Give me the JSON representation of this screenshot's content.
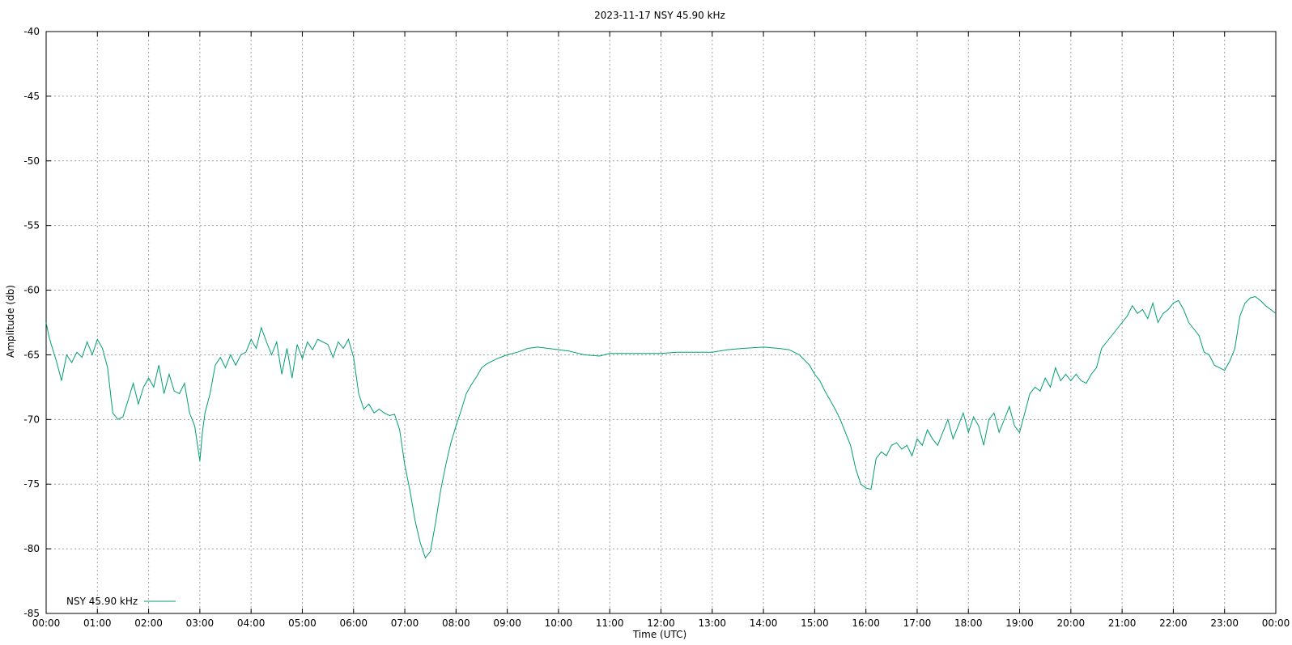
{
  "chart_data": {
    "type": "line",
    "title": "2023-11-17 NSY 45.90 kHz",
    "xlabel": "Time (UTC)",
    "ylabel": "Amplitude (db)",
    "xlim": [
      0,
      24
    ],
    "ylim": [
      -85,
      -40
    ],
    "x_tick_labels": [
      "00:00",
      "01:00",
      "02:00",
      "03:00",
      "04:00",
      "05:00",
      "06:00",
      "07:00",
      "08:00",
      "09:00",
      "10:00",
      "11:00",
      "12:00",
      "13:00",
      "14:00",
      "15:00",
      "16:00",
      "17:00",
      "18:00",
      "19:00",
      "20:00",
      "21:00",
      "22:00",
      "23:00",
      "00:00"
    ],
    "y_ticks": [
      -40,
      -45,
      -50,
      -55,
      -60,
      -65,
      -70,
      -75,
      -80,
      -85
    ],
    "grid": true,
    "legend_position": "bottom-left",
    "series": [
      {
        "name": "NSY 45.90 kHz",
        "color": "#009e73",
        "x": [
          0.0,
          0.05,
          0.1,
          0.2,
          0.3,
          0.4,
          0.5,
          0.6,
          0.7,
          0.8,
          0.9,
          1.0,
          1.1,
          1.2,
          1.3,
          1.4,
          1.5,
          1.6,
          1.7,
          1.8,
          1.9,
          2.0,
          2.1,
          2.2,
          2.3,
          2.4,
          2.5,
          2.6,
          2.7,
          2.8,
          2.9,
          3.0,
          3.05,
          3.1,
          3.2,
          3.3,
          3.4,
          3.5,
          3.6,
          3.7,
          3.8,
          3.9,
          4.0,
          4.1,
          4.2,
          4.3,
          4.4,
          4.5,
          4.6,
          4.7,
          4.8,
          4.9,
          5.0,
          5.1,
          5.2,
          5.3,
          5.4,
          5.5,
          5.6,
          5.7,
          5.8,
          5.9,
          6.0,
          6.1,
          6.2,
          6.3,
          6.4,
          6.5,
          6.6,
          6.7,
          6.8,
          6.9,
          7.0,
          7.1,
          7.2,
          7.3,
          7.4,
          7.5,
          7.6,
          7.7,
          7.8,
          7.9,
          8.0,
          8.1,
          8.2,
          8.3,
          8.4,
          8.5,
          8.6,
          8.8,
          9.0,
          9.2,
          9.4,
          9.6,
          9.8,
          10.0,
          10.2,
          10.5,
          10.8,
          11.0,
          11.3,
          11.6,
          12.0,
          12.3,
          12.6,
          13.0,
          13.3,
          13.6,
          14.0,
          14.3,
          14.5,
          14.7,
          14.9,
          15.0,
          15.1,
          15.2,
          15.3,
          15.4,
          15.5,
          15.6,
          15.7,
          15.8,
          15.9,
          16.0,
          16.1,
          16.2,
          16.3,
          16.4,
          16.5,
          16.6,
          16.7,
          16.8,
          16.9,
          17.0,
          17.1,
          17.2,
          17.3,
          17.4,
          17.5,
          17.6,
          17.7,
          17.8,
          17.9,
          18.0,
          18.1,
          18.2,
          18.3,
          18.4,
          18.5,
          18.6,
          18.7,
          18.8,
          18.9,
          19.0,
          19.1,
          19.2,
          19.3,
          19.4,
          19.5,
          19.6,
          19.7,
          19.8,
          19.9,
          20.0,
          20.1,
          20.2,
          20.3,
          20.4,
          20.5,
          20.6,
          20.7,
          20.8,
          20.9,
          21.0,
          21.1,
          21.2,
          21.3,
          21.4,
          21.5,
          21.6,
          21.7,
          21.8,
          21.9,
          22.0,
          22.1,
          22.2,
          22.3,
          22.4,
          22.5,
          22.6,
          22.7,
          22.8,
          22.9,
          23.0,
          23.1,
          23.2,
          23.3,
          23.4,
          23.5,
          23.6,
          23.7,
          23.8,
          23.9,
          24.0
        ],
        "y": [
          -62.5,
          -63.5,
          -64.2,
          -65.5,
          -67.0,
          -65.0,
          -65.6,
          -64.8,
          -65.2,
          -64.0,
          -65.0,
          -63.8,
          -64.5,
          -66.0,
          -69.5,
          -70.0,
          -69.8,
          -68.5,
          -67.2,
          -68.8,
          -67.5,
          -66.8,
          -67.5,
          -65.8,
          -68.0,
          -66.5,
          -67.8,
          -68.0,
          -67.2,
          -69.5,
          -70.5,
          -73.2,
          -71.0,
          -69.5,
          -68.0,
          -65.8,
          -65.2,
          -66.0,
          -65.0,
          -65.8,
          -65.0,
          -64.8,
          -63.8,
          -64.5,
          -62.9,
          -64.0,
          -65.0,
          -64.0,
          -66.5,
          -64.5,
          -66.8,
          -64.2,
          -65.3,
          -64.0,
          -64.6,
          -63.8,
          -64.0,
          -64.2,
          -65.2,
          -64.0,
          -64.5,
          -63.8,
          -65.2,
          -68.0,
          -69.2,
          -68.8,
          -69.5,
          -69.2,
          -69.5,
          -69.7,
          -69.6,
          -70.8,
          -73.5,
          -75.5,
          -77.8,
          -79.5,
          -80.7,
          -80.2,
          -78.0,
          -75.5,
          -73.5,
          -71.8,
          -70.5,
          -69.3,
          -68.0,
          -67.3,
          -66.7,
          -66.0,
          -65.7,
          -65.3,
          -65.0,
          -64.8,
          -64.5,
          -64.4,
          -64.5,
          -64.6,
          -64.7,
          -65.0,
          -65.1,
          -64.9,
          -64.9,
          -64.9,
          -64.9,
          -64.8,
          -64.8,
          -64.8,
          -64.6,
          -64.5,
          -64.4,
          -64.5,
          -64.6,
          -65.0,
          -65.8,
          -66.5,
          -67.0,
          -67.8,
          -68.5,
          -69.2,
          -70.0,
          -71.0,
          -72.0,
          -73.8,
          -75.0,
          -75.3,
          -75.4,
          -73.0,
          -72.5,
          -72.8,
          -72.0,
          -71.8,
          -72.3,
          -72.0,
          -72.8,
          -71.5,
          -72.0,
          -70.8,
          -71.5,
          -72.0,
          -71.0,
          -70.0,
          -71.5,
          -70.5,
          -69.5,
          -71.0,
          -69.8,
          -70.5,
          -72.0,
          -70.0,
          -69.5,
          -71.0,
          -70.0,
          -69.0,
          -70.5,
          -71.0,
          -69.5,
          -68.0,
          -67.5,
          -67.8,
          -66.8,
          -67.5,
          -66.0,
          -67.0,
          -66.5,
          -67.0,
          -66.5,
          -67.0,
          -67.2,
          -66.5,
          -66.0,
          -64.5,
          -64.0,
          -63.5,
          -63.0,
          -62.5,
          -62.0,
          -61.2,
          -61.8,
          -61.5,
          -62.2,
          -61.0,
          -62.5,
          -61.8,
          -61.5,
          -61.0,
          -60.8,
          -61.5,
          -62.5,
          -63.0,
          -63.5,
          -64.8,
          -65.0,
          -65.8,
          -66.0,
          -66.2,
          -65.5,
          -64.5,
          -62.0,
          -61.0,
          -60.6,
          -60.5,
          -60.8,
          -61.2,
          -61.5,
          -61.8
        ]
      }
    ]
  }
}
